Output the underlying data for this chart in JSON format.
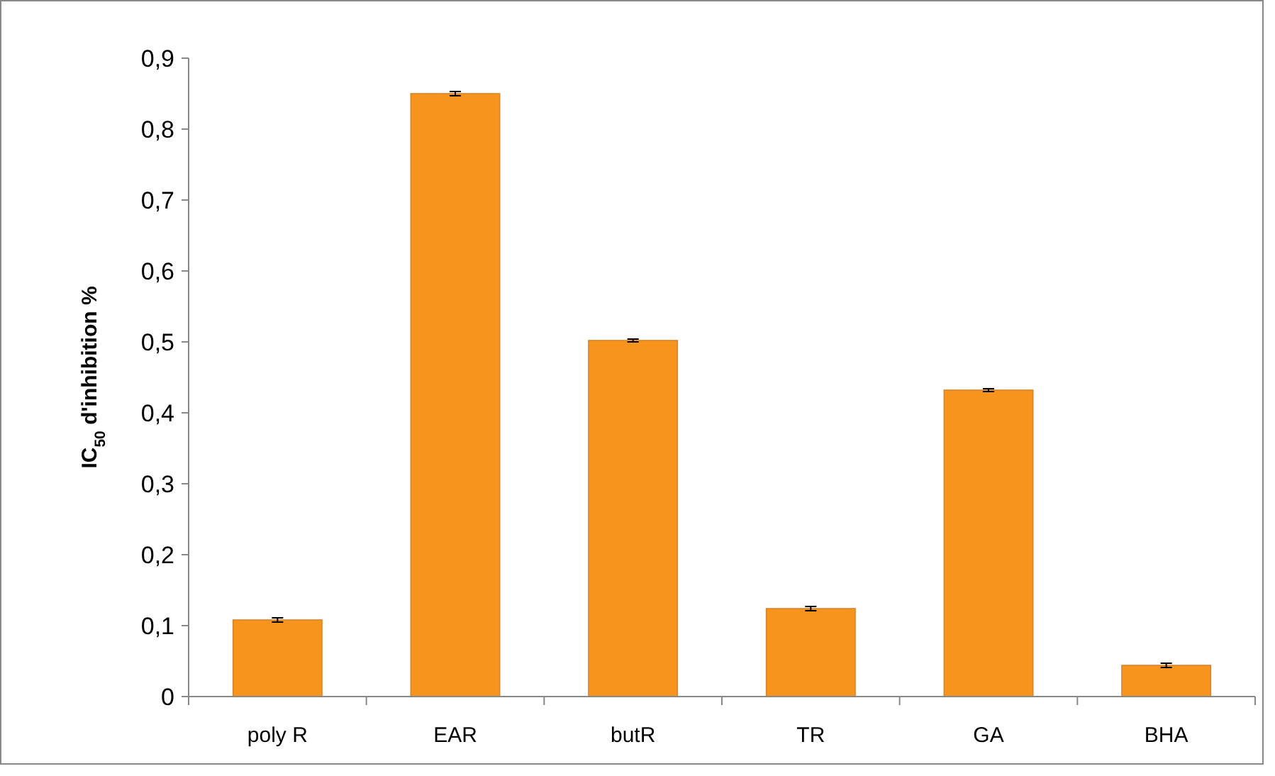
{
  "chart_data": {
    "type": "bar",
    "ylabel": "IC$_{50}$ d'inhibition %",
    "categories": [
      "poly R",
      "EAR",
      "butR",
      "TR",
      "GA",
      "BHA"
    ],
    "values": [
      0.108,
      0.85,
      0.502,
      0.124,
      0.432,
      0.044
    ],
    "errors": [
      0.003,
      0.003,
      0.002,
      0.003,
      0.002,
      0.003
    ],
    "color": "#f7941d",
    "ylim": [
      0,
      0.9
    ],
    "yticks": [
      {
        "value": 0,
        "label": "0"
      },
      {
        "value": 0.1,
        "label": "0,1"
      },
      {
        "value": 0.2,
        "label": "0,2"
      },
      {
        "value": 0.3,
        "label": "0,3"
      },
      {
        "value": 0.4,
        "label": "0,4"
      },
      {
        "value": 0.5,
        "label": "0,5"
      },
      {
        "value": 0.6,
        "label": "0,6"
      },
      {
        "value": 0.7,
        "label": "0,7"
      },
      {
        "value": 0.8,
        "label": "0,8"
      },
      {
        "value": 0.9,
        "label": "0,9"
      }
    ],
    "grid": false
  }
}
